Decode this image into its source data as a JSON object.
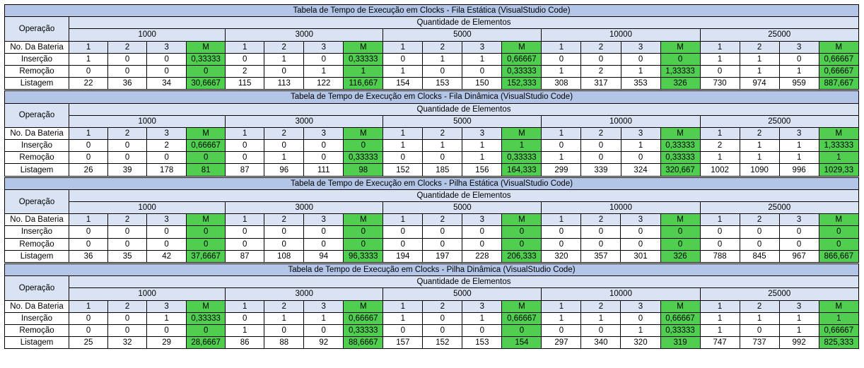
{
  "sheet": {
    "operacao_label": "Operação",
    "quantidade_label": "Quantidade de Elementos",
    "sizes": [
      "1000",
      "3000",
      "5000",
      "10000",
      "25000"
    ],
    "bateria_label": "No. Da Bateria",
    "battery_numbers": [
      "1",
      "2",
      "3",
      "M"
    ],
    "colors": {
      "title_bg": "#b4c6e7",
      "header_bg": "#dae3f3",
      "mean_bg": "#4fce4f"
    }
  },
  "tables": [
    {
      "title": "Tabela de Tempo de Execução em Clocks - Fila Estática (VisualStudio Code)",
      "rows": [
        {
          "label": "Inserção",
          "values": [
            "1",
            "0",
            "0",
            "0,33333",
            "0",
            "1",
            "0",
            "0,33333",
            "0",
            "1",
            "1",
            "0,66667",
            "0",
            "0",
            "0",
            "0",
            "1",
            "1",
            "0",
            "0,66667"
          ]
        },
        {
          "label": "Remoção",
          "values": [
            "0",
            "0",
            "0",
            "0",
            "2",
            "0",
            "1",
            "1",
            "1",
            "0",
            "0",
            "0,33333",
            "1",
            "2",
            "1",
            "1,33333",
            "0",
            "1",
            "1",
            "0,66667"
          ]
        },
        {
          "label": "Listagem",
          "values": [
            "22",
            "36",
            "34",
            "30,6667",
            "115",
            "113",
            "122",
            "116,667",
            "154",
            "153",
            "150",
            "152,333",
            "308",
            "317",
            "353",
            "326",
            "730",
            "974",
            "959",
            "887,667"
          ]
        }
      ]
    },
    {
      "title": "Tabela de Tempo de Execução em Clocks - Fila Dinâmica (VisualStudio Code)",
      "rows": [
        {
          "label": "Inserção",
          "values": [
            "0",
            "0",
            "2",
            "0,66667",
            "0",
            "0",
            "0",
            "0",
            "1",
            "1",
            "1",
            "1",
            "0",
            "0",
            "1",
            "0,33333",
            "2",
            "1",
            "1",
            "1,33333"
          ]
        },
        {
          "label": "Remoção",
          "values": [
            "0",
            "0",
            "0",
            "0",
            "0",
            "1",
            "0",
            "0,33333",
            "0",
            "0",
            "1",
            "0,33333",
            "1",
            "0",
            "0",
            "0,33333",
            "1",
            "1",
            "1",
            "1"
          ]
        },
        {
          "label": "Listagem",
          "values": [
            "26",
            "39",
            "178",
            "81",
            "87",
            "96",
            "111",
            "98",
            "152",
            "185",
            "156",
            "164,333",
            "299",
            "339",
            "324",
            "320,667",
            "1002",
            "1090",
            "996",
            "1029,33"
          ]
        }
      ]
    },
    {
      "title": "Tabela de Tempo de Execução em Clocks - Pilha Estática (VisualStudio Code)",
      "rows": [
        {
          "label": "Inserção",
          "values": [
            "0",
            "0",
            "0",
            "0",
            "0",
            "0",
            "0",
            "0",
            "0",
            "0",
            "0",
            "0",
            "0",
            "0",
            "0",
            "0",
            "0",
            "0",
            "0",
            "0"
          ]
        },
        {
          "label": "Remoção",
          "values": [
            "0",
            "0",
            "0",
            "0",
            "0",
            "0",
            "0",
            "0",
            "0",
            "0",
            "0",
            "0",
            "0",
            "0",
            "0",
            "0",
            "0",
            "0",
            "0",
            "0"
          ]
        },
        {
          "label": "Listagem",
          "values": [
            "36",
            "35",
            "42",
            "37,6667",
            "87",
            "108",
            "94",
            "96,3333",
            "194",
            "197",
            "228",
            "206,333",
            "320",
            "357",
            "301",
            "326",
            "788",
            "845",
            "967",
            "866,667"
          ]
        }
      ]
    },
    {
      "title": "Tabela de Tempo de Execução em Clocks - Pilha Dinâmica (VisualStudio Code)",
      "rows": [
        {
          "label": "Inserção",
          "values": [
            "0",
            "0",
            "1",
            "0,33333",
            "0",
            "1",
            "1",
            "0,66667",
            "1",
            "0",
            "1",
            "0,66667",
            "1",
            "1",
            "0",
            "0,66667",
            "1",
            "1",
            "1",
            "1"
          ]
        },
        {
          "label": "Remoção",
          "values": [
            "0",
            "0",
            "0",
            "0",
            "1",
            "0",
            "0",
            "0,33333",
            "0",
            "0",
            "0",
            "0",
            "0",
            "0",
            "1",
            "0,33333",
            "1",
            "0",
            "1",
            "0,66667"
          ]
        },
        {
          "label": "Listagem",
          "values": [
            "25",
            "32",
            "29",
            "28,6667",
            "86",
            "88",
            "92",
            "88,6667",
            "157",
            "152",
            "153",
            "154",
            "297",
            "340",
            "320",
            "319",
            "747",
            "737",
            "992",
            "825,333"
          ]
        }
      ]
    }
  ]
}
